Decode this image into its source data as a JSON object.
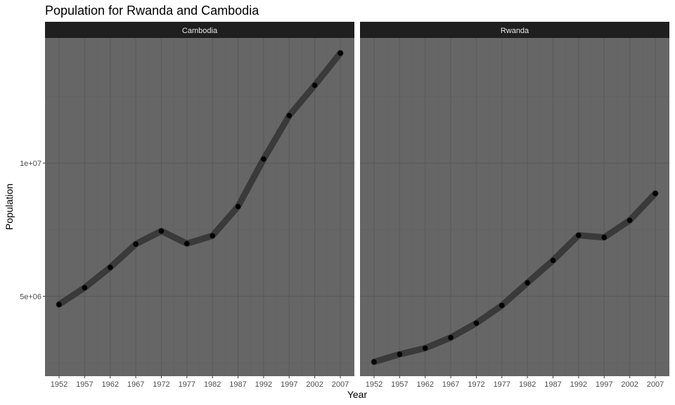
{
  "chart_data": {
    "type": "line",
    "title": "Population for Rwanda and Cambodia",
    "xlabel": "Year",
    "ylabel": "Population",
    "x": [
      1952,
      1957,
      1962,
      1967,
      1972,
      1977,
      1982,
      1987,
      1992,
      1997,
      2002,
      2007
    ],
    "x_ticks": [
      "1952",
      "1957",
      "1962",
      "1967",
      "1972",
      "1977",
      "1982",
      "1987",
      "1992",
      "1997",
      "2002",
      "2007"
    ],
    "y_ticks": [
      {
        "value": 5000000,
        "label": "5e+06"
      },
      {
        "value": 10000000,
        "label": "1e+07"
      }
    ],
    "ylim": [
      2000000,
      14700000
    ],
    "xlim": [
      1949.25,
      2009.75
    ],
    "facets": [
      {
        "label": "Cambodia",
        "values": [
          4693836,
          5322536,
          6083619,
          6960067,
          7450606,
          6978607,
          7272485,
          8371791,
          10150094,
          11782962,
          12926707,
          14131858
        ]
      },
      {
        "label": "Rwanda",
        "values": [
          2534927,
          2822082,
          3051242,
          3451079,
          3992121,
          4657072,
          5507565,
          6349365,
          7290203,
          7212583,
          7852401,
          8860588
        ]
      }
    ],
    "grid": true,
    "colors": {
      "panel": "#666666",
      "strip": "#1f1f1f",
      "line": "#3a3a3a",
      "point": "#000000",
      "grid_major": "#5a5a5a",
      "grid_minor": "#616161"
    }
  }
}
